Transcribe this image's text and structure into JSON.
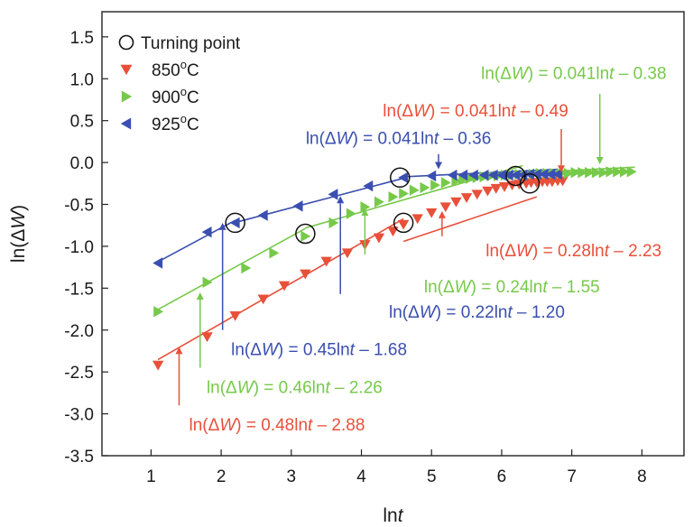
{
  "chart_data": {
    "type": "scatter",
    "xlabel": "lnt",
    "ylabel": "ln(ΔW)",
    "xlim": [
      0.3,
      8.6
    ],
    "ylim": [
      -3.5,
      1.8
    ],
    "xticks": [
      1,
      2,
      3,
      4,
      5,
      6,
      7,
      8
    ],
    "yticks": [
      1.5,
      1.0,
      0.5,
      0.0,
      -0.5,
      -1.0,
      -1.5,
      -2.0,
      -2.5,
      -3.0,
      -3.5
    ],
    "xtick_labels": [
      "1",
      "2",
      "3",
      "4",
      "5",
      "6",
      "7",
      "8"
    ],
    "ytick_labels": [
      "1.5",
      "1.0",
      "0.5",
      "0.0",
      "-0.5",
      "-1.0",
      "-1.5",
      "-2.0",
      "-2.5",
      "-3.0",
      "-3.5"
    ],
    "grid": false,
    "legend_position": "top-left",
    "legend": [
      {
        "label": "Turning point",
        "marker": "circle-open",
        "color": "#000000"
      },
      {
        "label": "850",
        "sup": "o",
        "unit": "C",
        "marker": "triangle-down",
        "color": "#e8503a"
      },
      {
        "label": "900",
        "sup": "o",
        "unit": "C",
        "marker": "triangle-right",
        "color": "#77c94a"
      },
      {
        "label": "925",
        "sup": "o",
        "unit": "C",
        "marker": "triangle-left",
        "color": "#3a4fb0"
      }
    ],
    "series": [
      {
        "name": "850°C",
        "marker": "triangle-down",
        "color": "#e8503a",
        "x": [
          1.1,
          1.8,
          2.2,
          2.6,
          2.9,
          3.2,
          3.5,
          3.8,
          4.05,
          4.25,
          4.45,
          4.6,
          4.8,
          5.0,
          5.2,
          5.35,
          5.5,
          5.65,
          5.8,
          5.92,
          6.04,
          6.15,
          6.25,
          6.35,
          6.42,
          6.5,
          6.58,
          6.65,
          6.72,
          6.8,
          6.87
        ],
        "y": [
          -2.42,
          -2.08,
          -1.83,
          -1.63,
          -1.47,
          -1.33,
          -1.18,
          -1.08,
          -0.98,
          -0.9,
          -0.82,
          -0.74,
          -0.67,
          -0.6,
          -0.53,
          -0.47,
          -0.42,
          -0.38,
          -0.34,
          -0.31,
          -0.29,
          -0.27,
          -0.26,
          -0.25,
          -0.24,
          -0.24,
          -0.23,
          -0.23,
          -0.23,
          -0.22,
          -0.22
        ]
      },
      {
        "name": "900°C",
        "marker": "triangle-right",
        "color": "#77c94a",
        "x": [
          1.1,
          1.8,
          2.35,
          2.75,
          3.2,
          3.6,
          3.85,
          4.05,
          4.25,
          4.45,
          4.6,
          4.75,
          4.9,
          5.05,
          5.2,
          5.35,
          5.45,
          5.55,
          5.65,
          5.75,
          5.85,
          5.95,
          6.05,
          6.15,
          6.25,
          6.35,
          6.45,
          6.55,
          6.65,
          6.75,
          6.85,
          6.95,
          7.05,
          7.15,
          7.25,
          7.35,
          7.45,
          7.55,
          7.65,
          7.75,
          7.85
        ],
        "y": [
          -1.78,
          -1.43,
          -1.26,
          -1.08,
          -0.88,
          -0.72,
          -0.61,
          -0.53,
          -0.47,
          -0.41,
          -0.37,
          -0.33,
          -0.3,
          -0.27,
          -0.24,
          -0.22,
          -0.2,
          -0.19,
          -0.18,
          -0.17,
          -0.16,
          -0.16,
          -0.15,
          -0.15,
          -0.14,
          -0.14,
          -0.14,
          -0.13,
          -0.13,
          -0.13,
          -0.13,
          -0.13,
          -0.12,
          -0.12,
          -0.12,
          -0.12,
          -0.12,
          -0.11,
          -0.11,
          -0.11,
          -0.11
        ]
      },
      {
        "name": "925°C",
        "marker": "triangle-left",
        "color": "#3a4fb0",
        "x": [
          1.1,
          1.8,
          2.2,
          2.6,
          3.1,
          3.6,
          4.1,
          4.6,
          5.0,
          5.3,
          5.45,
          5.6,
          5.75,
          5.88,
          6.0,
          6.1,
          6.2,
          6.3,
          6.4,
          6.5,
          6.6,
          6.7,
          6.8
        ],
        "y": [
          -1.2,
          -0.83,
          -0.72,
          -0.63,
          -0.52,
          -0.38,
          -0.28,
          -0.18,
          -0.16,
          -0.15,
          -0.15,
          -0.15,
          -0.15,
          -0.15,
          -0.15,
          -0.15,
          -0.15,
          -0.15,
          -0.14,
          -0.14,
          -0.14,
          -0.14,
          -0.14
        ]
      }
    ],
    "fit_lines": [
      {
        "series": "850°C",
        "color": "#e8503a",
        "x": [
          1.1,
          4.6
        ],
        "y": [
          -2.352,
          -0.672
        ]
      },
      {
        "series": "850°C",
        "color": "#e8503a",
        "x": [
          4.6,
          6.5
        ],
        "y": [
          -0.942,
          -0.41
        ]
      },
      {
        "series": "850°C",
        "color": "#e8503a",
        "x": [
          6.5,
          6.9
        ],
        "y": [
          -0.223,
          -0.207
        ]
      },
      {
        "series": "900°C",
        "color": "#77c94a",
        "x": [
          1.1,
          3.2
        ],
        "y": [
          -1.754,
          -0.788
        ]
      },
      {
        "series": "900°C",
        "color": "#77c94a",
        "x": [
          3.2,
          6.3
        ],
        "y": [
          -0.782,
          -0.038
        ]
      },
      {
        "series": "900°C",
        "color": "#77c94a",
        "x": [
          6.3,
          7.9
        ],
        "y": [
          -0.122,
          -0.056
        ]
      },
      {
        "series": "925°C",
        "color": "#3a4fb0",
        "x": [
          1.1,
          2.2
        ],
        "y": [
          -1.185,
          -0.69
        ]
      },
      {
        "series": "925°C",
        "color": "#3a4fb0",
        "x": [
          2.2,
          4.6
        ],
        "y": [
          -0.716,
          -0.188
        ]
      },
      {
        "series": "925°C",
        "color": "#3a4fb0",
        "x": [
          4.6,
          6.8
        ],
        "y": [
          -0.171,
          -0.081
        ]
      }
    ],
    "turning_points": [
      {
        "x": 2.2,
        "y": -0.72
      },
      {
        "x": 3.2,
        "y": -0.85
      },
      {
        "x": 4.6,
        "y": -0.72
      },
      {
        "x": 4.55,
        "y": -0.18
      },
      {
        "x": 6.2,
        "y": -0.16
      },
      {
        "x": 6.4,
        "y": -0.25
      }
    ],
    "annotations": [
      {
        "pre": "ln(Δ",
        "var": "W",
        "mid": ") = 0.041ln",
        "var2": "t",
        "post": " – 0.38",
        "color": "#77c94a",
        "text_x": 8.35,
        "text_y": 1.0,
        "anchor": "end",
        "arrow_from": [
          7.4,
          0.82
        ],
        "arrow_to": [
          7.4,
          -0.02
        ]
      },
      {
        "pre": "ln(Δ",
        "var": "W",
        "mid": ") = 0.041ln",
        "var2": "t",
        "post": " – 0.49",
        "color": "#e8503a",
        "text_x": 6.95,
        "text_y": 0.55,
        "anchor": "end",
        "arrow_from": [
          6.85,
          0.4
        ],
        "arrow_to": [
          6.85,
          -0.12
        ]
      },
      {
        "pre": "ln(Δ",
        "var": "W",
        "mid": ") = 0.041ln",
        "var2": "t",
        "post": " – 0.36",
        "color": "#3a4fb0",
        "text_x": 5.85,
        "text_y": 0.22,
        "anchor": "end",
        "arrow_from": [
          5.1,
          0.1
        ],
        "arrow_to": [
          5.1,
          -0.08
        ]
      },
      {
        "pre": "ln(Δ",
        "var": "W",
        "mid": ") = 0.28ln",
        "var2": "t",
        "post": " – 2.23",
        "color": "#e8503a",
        "text_x": 8.28,
        "text_y": -1.12,
        "anchor": "end",
        "arrow_from": [
          5.15,
          -0.88
        ],
        "arrow_to": [
          5.15,
          -0.58
        ]
      },
      {
        "pre": "ln(Δ",
        "var": "W",
        "mid": ") = 0.24ln",
        "var2": "t",
        "post": " – 1.55",
        "color": "#77c94a",
        "text_x": 7.4,
        "text_y": -1.55,
        "anchor": "end",
        "arrow_from": [
          4.05,
          -1.1
        ],
        "arrow_to": [
          4.05,
          -0.55
        ]
      },
      {
        "pre": "ln(Δ",
        "var": "W",
        "mid": ") = 0.22ln",
        "var2": "t",
        "post": " – 1.20",
        "color": "#3a4fb0",
        "text_x": 6.9,
        "text_y": -1.85,
        "anchor": "end",
        "arrow_from": [
          3.7,
          -1.57
        ],
        "arrow_to": [
          3.7,
          -0.4
        ]
      },
      {
        "pre": "ln(Δ",
        "var": "W",
        "mid": ") = 0.45ln",
        "var2": "t",
        "post": " – 1.68",
        "color": "#3a4fb0",
        "text_x": 4.65,
        "text_y": -2.3,
        "anchor": "end",
        "arrow_from": [
          2.02,
          -2.0
        ],
        "arrow_to": [
          2.02,
          -0.72
        ]
      },
      {
        "pre": "ln(Δ",
        "var": "W",
        "mid": ") = 0.46ln",
        "var2": "t",
        "post": " – 2.26",
        "color": "#77c94a",
        "text_x": 4.3,
        "text_y": -2.75,
        "anchor": "end",
        "arrow_from": [
          1.7,
          -2.45
        ],
        "arrow_to": [
          1.7,
          -1.55
        ]
      },
      {
        "pre": "ln(Δ",
        "var": "W",
        "mid": ") = 0.48ln",
        "var2": "t",
        "post": " – 2.88",
        "color": "#e8503a",
        "text_x": 4.05,
        "text_y": -3.2,
        "anchor": "end",
        "arrow_from": [
          1.4,
          -2.9
        ],
        "arrow_to": [
          1.4,
          -2.2
        ]
      }
    ]
  }
}
